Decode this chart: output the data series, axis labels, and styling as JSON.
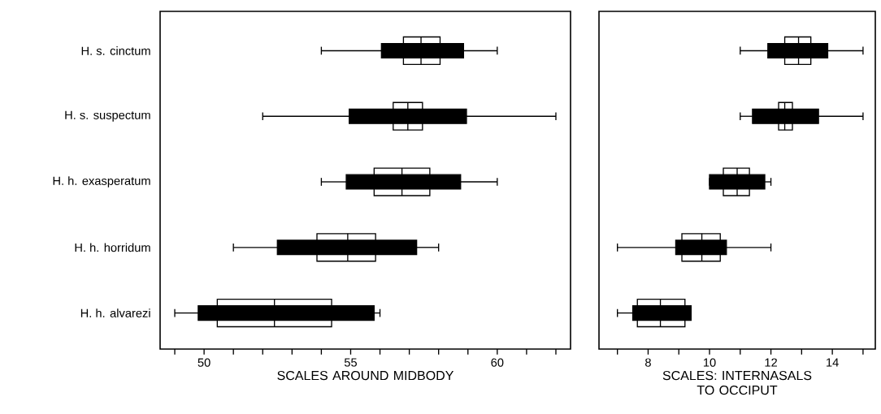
{
  "chart_data": [
    {
      "type": "box",
      "orientation": "horizontal",
      "categories": [
        "H. s. cinctum",
        "H. s. suspectum",
        "H. h. exasperatum",
        "H. h. horridum",
        "H. h. alvarezi"
      ],
      "series": [
        {
          "color": "#ffffff",
          "boxes": [
            {
              "low": 56.8,
              "q1": 56.8,
              "median": 57.4,
              "q3": 58.05,
              "high": 58.05
            },
            {
              "low": 56.45,
              "q1": 56.45,
              "median": 56.95,
              "q3": 57.45,
              "high": 57.45
            },
            {
              "low": 55.8,
              "q1": 55.8,
              "median": 56.75,
              "q3": 57.7,
              "high": 57.7
            },
            {
              "low": 53.85,
              "q1": 53.85,
              "median": 54.9,
              "q3": 55.85,
              "high": 55.85
            },
            {
              "low": 50.45,
              "q1": 50.45,
              "median": 52.4,
              "q3": 54.35,
              "high": 54.35
            }
          ]
        },
        {
          "color": "#000000",
          "boxes": [
            {
              "low": 54,
              "q1": 56.05,
              "median": 57.4,
              "q3": 58.85,
              "high": 60
            },
            {
              "low": 52,
              "q1": 54.95,
              "median": 56.95,
              "q3": 58.95,
              "high": 62
            },
            {
              "low": 54,
              "q1": 54.85,
              "median": 56.75,
              "q3": 58.75,
              "high": 60
            },
            {
              "low": 51,
              "q1": 52.5,
              "median": 54.9,
              "q3": 57.25,
              "high": 58
            },
            {
              "low": 49,
              "q1": 49.8,
              "median": 52.4,
              "q3": 55.8,
              "high": 56
            }
          ]
        }
      ],
      "xlabel": "SCALES AROUND MIDBODY",
      "xlim": [
        48.5,
        62.5
      ],
      "xticks": [
        {
          "value": 49,
          "label": null
        },
        50,
        {
          "value": 51,
          "label": null
        },
        {
          "value": 52,
          "label": null
        },
        {
          "value": 53,
          "label": null
        },
        {
          "value": 54,
          "label": null
        },
        55,
        {
          "value": 56,
          "label": null
        },
        {
          "value": 57,
          "label": null
        },
        {
          "value": 58,
          "label": null
        },
        {
          "value": 59,
          "label": null
        },
        60,
        {
          "value": 61,
          "label": null
        },
        {
          "value": 62,
          "label": null
        }
      ]
    },
    {
      "type": "box",
      "orientation": "horizontal",
      "categories": [
        null,
        null,
        null,
        null,
        null
      ],
      "series": [
        {
          "color": "#ffffff",
          "boxes": [
            {
              "low": 12.45,
              "q1": 12.45,
              "median": 12.9,
              "q3": 13.3,
              "high": 13.3
            },
            {
              "low": 12.25,
              "q1": 12.25,
              "median": 12.45,
              "q3": 12.7,
              "high": 12.7
            },
            {
              "low": 10.45,
              "q1": 10.45,
              "median": 10.9,
              "q3": 11.3,
              "high": 11.3
            },
            {
              "low": 9.1,
              "q1": 9.1,
              "median": 9.75,
              "q3": 10.35,
              "high": 10.35
            },
            {
              "low": 7.65,
              "q1": 7.65,
              "median": 8.4,
              "q3": 9.2,
              "high": 9.2
            }
          ]
        },
        {
          "color": "#000000",
          "boxes": [
            {
              "low": 11,
              "q1": 11.9,
              "median": 12.9,
              "q3": 13.85,
              "high": 15
            },
            {
              "low": 11,
              "q1": 11.4,
              "median": 12.45,
              "q3": 13.55,
              "high": 15
            },
            {
              "low": 10,
              "q1": 10,
              "median": 10.9,
              "q3": 11.8,
              "high": 12
            },
            {
              "low": 7,
              "q1": 8.9,
              "median": 9.75,
              "q3": 10.55,
              "high": 12
            },
            {
              "low": 7,
              "q1": 7.5,
              "median": 8.4,
              "q3": 9.4,
              "high": 9.4
            }
          ]
        }
      ],
      "xlabel": "SCALES: INTERNASALS TO OCCIPUT",
      "xlim": [
        6.4,
        15.4
      ],
      "tick_labels": "x",
      "xticks": [
        {
          "value": 7,
          "label": null
        },
        8,
        {
          "value": 9,
          "label": null
        },
        10,
        {
          "value": 11,
          "label": null
        },
        12,
        {
          "value": 13,
          "label": null
        },
        14,
        {
          "value": 15,
          "label": null
        }
      ]
    }
  ]
}
